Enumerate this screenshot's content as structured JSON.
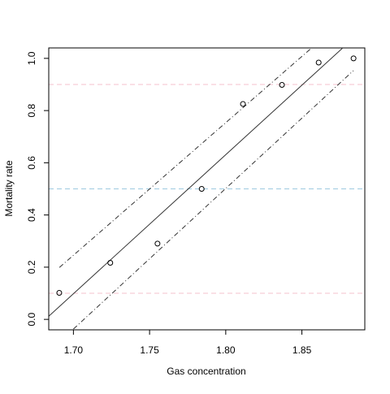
{
  "chart_data": {
    "type": "scatter",
    "x_label": "Gas concentration",
    "y_label": "Mortality rate",
    "xlim": [
      1.6838,
      1.8913
    ],
    "ylim": [
      -0.04,
      1.04
    ],
    "xticks": [
      {
        "value": 1.7,
        "label": "1.70"
      },
      {
        "value": 1.75,
        "label": "1.75"
      },
      {
        "value": 1.8,
        "label": "1.80"
      },
      {
        "value": 1.85,
        "label": "1.85"
      }
    ],
    "yticks": [
      {
        "value": 0,
        "label": "0.0"
      },
      {
        "value": 0.2,
        "label": "0.2"
      },
      {
        "value": 0.4,
        "label": "0.4"
      },
      {
        "value": 0.6,
        "label": "0.6"
      },
      {
        "value": 0.8,
        "label": "0.8"
      },
      {
        "value": 1,
        "label": "1.0"
      }
    ],
    "series": [
      {
        "color": "#000000",
        "x": [
          1.6907,
          1.7242,
          1.7552,
          1.7842,
          1.8113,
          1.8369,
          1.861,
          1.8839
        ],
        "values": [
          0.1017,
          0.2167,
          0.2903,
          0.5,
          0.8254,
          0.8983,
          0.9839,
          1.0
        ]
      }
    ],
    "lines": [
      {
        "color": "#333333",
        "style": "solid",
        "x": [
          1.6838,
          1.8768
        ],
        "values": [
          0.012,
          1.04
        ]
      },
      {
        "color": "#333333",
        "style": "dashdot",
        "x": [
          1.6908,
          1.8564
        ],
        "values": [
          0.199,
          1.04
        ]
      },
      {
        "color": "#333333",
        "style": "dashdot",
        "x": [
          1.7,
          1.8838
        ],
        "values": [
          -0.037,
          0.953
        ]
      }
    ],
    "hlines": [
      {
        "value": 0.1,
        "color": "#f4c2cc"
      },
      {
        "value": 0.5,
        "color": "#9ecae1"
      },
      {
        "value": 0.9,
        "color": "#f4c2cc"
      }
    ]
  }
}
